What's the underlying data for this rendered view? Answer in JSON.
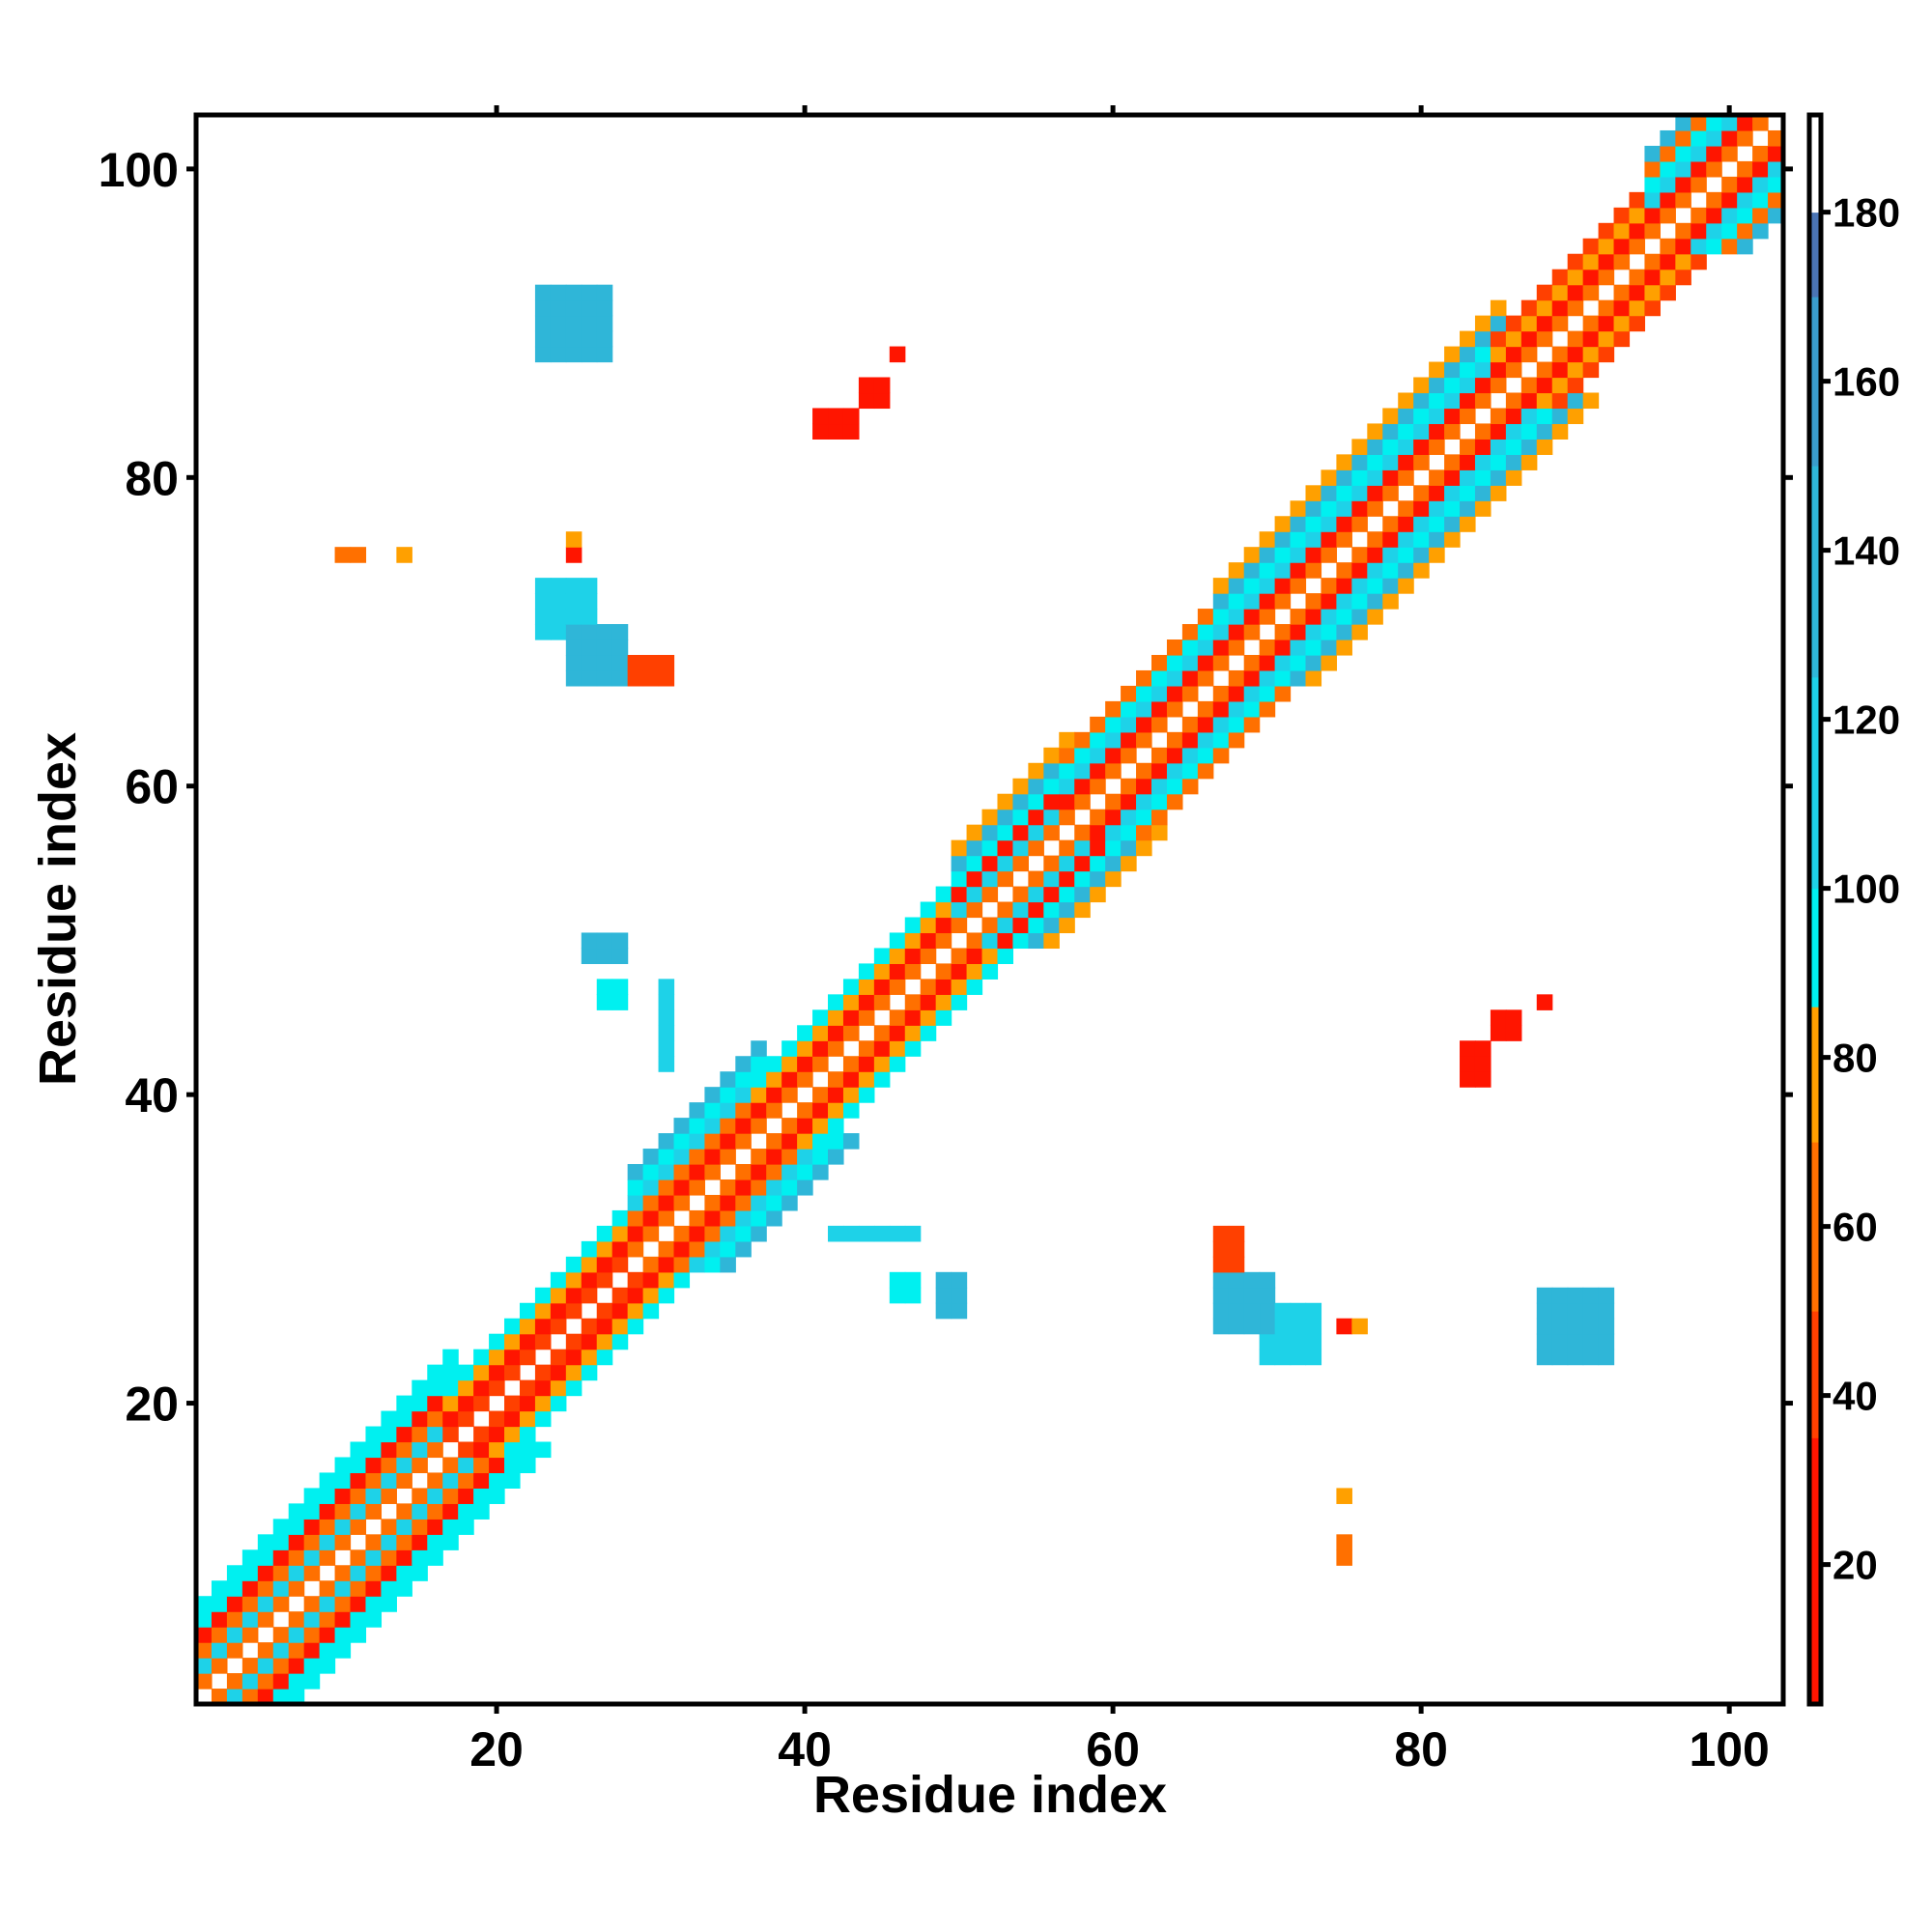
{
  "chart_data": {
    "type": "heatmap",
    "title": "",
    "xlabel": "Residue index",
    "ylabel": "Residue index",
    "xlim": [
      0.5,
      103.5
    ],
    "ylim": [
      0.5,
      103.5
    ],
    "x_ticks": [
      20,
      40,
      60,
      80,
      100
    ],
    "y_ticks": [
      20,
      40,
      60,
      80,
      100
    ],
    "colorbar": {
      "range": [
        3.5,
        191.5
      ],
      "ticks": [
        20,
        40,
        60,
        80,
        100,
        120,
        140,
        160,
        180
      ],
      "bins": [
        {
          "max": 35,
          "color": "#ff1500"
        },
        {
          "max": 50,
          "color": "#ff4000"
        },
        {
          "max": 70,
          "color": "#ff7000"
        },
        {
          "max": 86,
          "color": "#ffa000"
        },
        {
          "max": 100,
          "color": "#00f0f0"
        },
        {
          "max": 125,
          "color": "#1ed2e8"
        },
        {
          "max": 150,
          "color": "#2fb6d8"
        },
        {
          "max": 170,
          "color": "#3a9ccc"
        },
        {
          "max": 180,
          "color": "#4a74b4"
        },
        {
          "max": 192,
          "color": "#ffffff"
        }
      ]
    },
    "diagonal_segments": [
      {
        "from": 1,
        "to": 17,
        "offset_values": [
          null,
          55,
          120,
          55,
          30,
          95,
          95
        ]
      },
      {
        "from": 17,
        "to": 29,
        "offset_values": [
          null,
          50,
          30,
          75,
          100
        ]
      },
      {
        "from": 29,
        "to": 37,
        "offset_values": [
          null,
          55,
          30,
          55,
          120,
          95,
          130
        ]
      },
      {
        "from": 37,
        "to": 50,
        "offset_values": [
          null,
          55,
          30,
          75,
          95
        ]
      },
      {
        "from": 50,
        "to": 57,
        "offset_values": [
          null,
          55,
          120,
          30,
          95,
          130,
          75
        ]
      },
      {
        "from": 57,
        "to": 67,
        "offset_values": [
          null,
          55,
          30,
          120,
          95,
          60
        ]
      },
      {
        "from": 67,
        "to": 85,
        "offset_values": [
          null,
          55,
          30,
          120,
          95,
          130,
          75
        ]
      },
      {
        "from": 85,
        "to": 95,
        "offset_values": [
          null,
          55,
          30,
          75,
          45
        ]
      },
      {
        "from": 95,
        "to": 103,
        "offset_values": [
          null,
          55,
          30,
          120,
          95,
          60,
          130
        ]
      }
    ],
    "contact_clusters": [
      {
        "x": [
          23,
          27
        ],
        "y": [
          88,
          92
        ],
        "value": 140
      },
      {
        "x": [
          23,
          26
        ],
        "y": [
          70,
          73
        ],
        "value": 120
      },
      {
        "x": [
          25,
          28
        ],
        "y": [
          67,
          70
        ],
        "value": 140
      },
      {
        "x": [
          29,
          31
        ],
        "y": [
          67,
          68
        ],
        "value": 45
      },
      {
        "x": [
          41,
          43
        ],
        "y": [
          83,
          84
        ],
        "value": 30
      },
      {
        "x": [
          44,
          45
        ],
        "y": [
          85,
          86
        ],
        "value": 35
      },
      {
        "x": [
          46,
          46
        ],
        "y": [
          88,
          88
        ],
        "value": 30
      },
      {
        "x": [
          10,
          11
        ],
        "y": [
          75,
          75
        ],
        "value": 70
      },
      {
        "x": [
          14,
          14
        ],
        "y": [
          75,
          75
        ],
        "value": 80
      },
      {
        "x": [
          25,
          25
        ],
        "y": [
          75,
          75
        ],
        "value": 30
      },
      {
        "x": [
          25,
          25
        ],
        "y": [
          76,
          76
        ],
        "value": 80
      },
      {
        "x": [
          26,
          28
        ],
        "y": [
          49,
          50
        ],
        "value": 140
      },
      {
        "x": [
          27,
          28
        ],
        "y": [
          46,
          47
        ],
        "value": 100
      },
      {
        "x": [
          31,
          31
        ],
        "y": [
          42,
          47
        ],
        "value": 110
      }
    ]
  }
}
